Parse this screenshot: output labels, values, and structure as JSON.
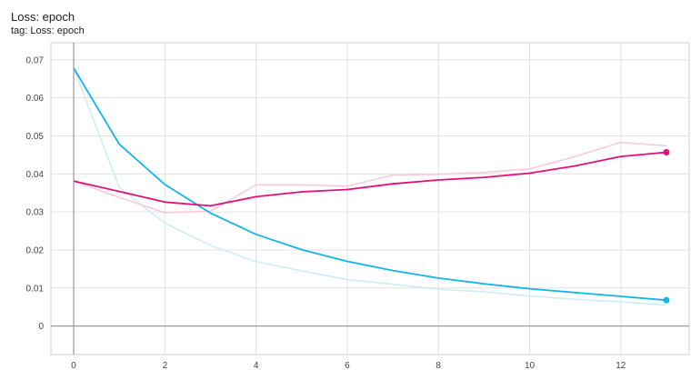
{
  "header": {
    "title": "Loss: epoch",
    "tag": "tag: Loss: epoch"
  },
  "chart_data": {
    "type": "line",
    "title": "Loss: epoch",
    "subtitle": "tag: Loss: epoch",
    "xlabel": "",
    "ylabel": "",
    "xlim": [
      -0.5,
      13.5
    ],
    "ylim": [
      -0.0075,
      0.0745
    ],
    "x_ticks": [
      0,
      2,
      4,
      6,
      8,
      10,
      12
    ],
    "y_ticks": [
      0,
      0.01,
      0.02,
      0.03,
      0.04,
      0.05,
      0.06,
      0.07
    ],
    "x_tick_labels": [
      "0",
      "2",
      "4",
      "6",
      "8",
      "10",
      "12"
    ],
    "y_tick_labels": [
      "0",
      "0.01",
      "0.02",
      "0.03",
      "0.04",
      "0.05",
      "0.06",
      "0.07"
    ],
    "grid": true,
    "series": [
      {
        "color": "#12b5e8",
        "raw_color": "#c8ecf9",
        "x": [
          0,
          1,
          2,
          3,
          4,
          5,
          6,
          7,
          8,
          9,
          10,
          11,
          12,
          13
        ],
        "smoothed": [
          0.0678,
          0.0478,
          0.0372,
          0.0297,
          0.0241,
          0.0201,
          0.017,
          0.0146,
          0.0126,
          0.0111,
          0.0098,
          0.0088,
          0.0078,
          0.0068
        ],
        "raw": [
          0.0678,
          0.0365,
          0.027,
          0.0212,
          0.0169,
          0.0145,
          0.0122,
          0.011,
          0.0097,
          0.009,
          0.0079,
          0.007,
          0.0064,
          0.0055
        ]
      },
      {
        "color": "#e30e7a",
        "raw_color": "#f7c8dc",
        "x": [
          0,
          1,
          2,
          3,
          4,
          5,
          6,
          7,
          8,
          9,
          10,
          11,
          12,
          13
        ],
        "smoothed": [
          0.0381,
          0.0354,
          0.0326,
          0.0316,
          0.034,
          0.0353,
          0.0359,
          0.0374,
          0.0384,
          0.0391,
          0.0402,
          0.0421,
          0.0446,
          0.0457
        ],
        "raw": [
          0.0381,
          0.0338,
          0.0298,
          0.0302,
          0.0371,
          0.0371,
          0.0368,
          0.0397,
          0.0399,
          0.0404,
          0.0413,
          0.0446,
          0.0483,
          0.0474
        ]
      }
    ]
  }
}
